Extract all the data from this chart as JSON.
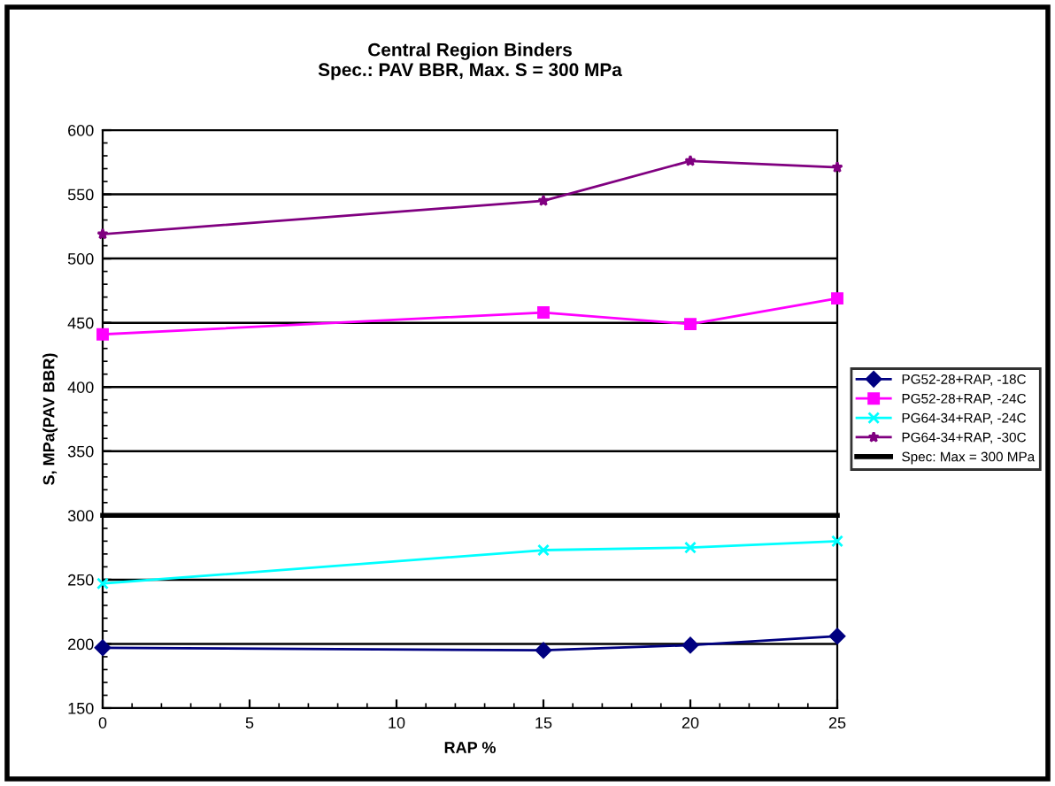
{
  "chart_data": {
    "type": "line",
    "title": "Central Region Binders\nSpec.: PAV BBR, Max. S = 300 MPa",
    "xlabel": "RAP %",
    "ylabel": "S, MPa(PAV BBR)",
    "x": [
      0,
      15,
      20,
      25
    ],
    "series": [
      {
        "name": "PG52-28+RAP, -18C",
        "color": "#000080",
        "marker": "diamond",
        "values": [
          197,
          195,
          199,
          206
        ]
      },
      {
        "name": "PG52-28+RAP, -24C",
        "color": "#ff00ff",
        "marker": "square",
        "values": [
          441,
          458,
          449,
          469
        ]
      },
      {
        "name": "PG64-34+RAP, -24C",
        "color": "#00ffff",
        "marker": "cross",
        "values": [
          247,
          273,
          275,
          280
        ]
      },
      {
        "name": "PG64-34+RAP, -30C",
        "color": "#800080",
        "marker": "star",
        "values": [
          519,
          545,
          576,
          571
        ]
      },
      {
        "name": "Spec: Max = 300 MPa",
        "color": "#000000",
        "marker": "none",
        "x": [
          0,
          25
        ],
        "values": [
          300,
          300
        ]
      }
    ],
    "xlim": [
      0,
      25
    ],
    "xticks": [
      0,
      5,
      10,
      15,
      20,
      25
    ],
    "ylim": [
      150,
      600
    ],
    "yticks": [
      150,
      200,
      250,
      300,
      350,
      400,
      450,
      500,
      550,
      600
    ],
    "grid": "y",
    "legend": "right",
    "line_style": "solid"
  }
}
